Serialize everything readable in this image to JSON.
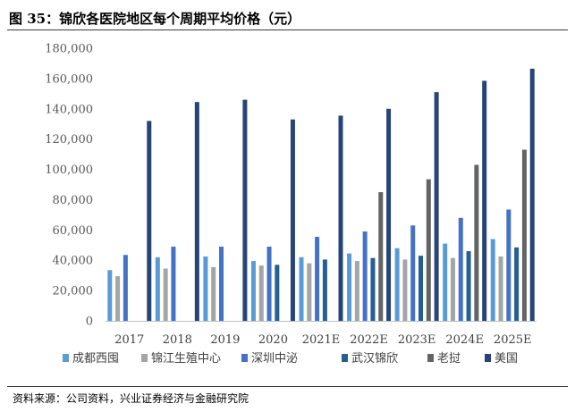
{
  "figure": {
    "title": "图  35：锦欣各医院地区每个周期平均价格（元）",
    "source": "资料来源：公司资料，兴业证券经济与金融研究院"
  },
  "chart_data": {
    "type": "bar",
    "title": "",
    "xlabel": "",
    "ylabel": "",
    "ylim": [
      0,
      180000
    ],
    "yticks": [
      "0",
      "20,000",
      "40,000",
      "60,000",
      "80,000",
      "100,000",
      "120,000",
      "140,000",
      "160,000",
      "180,000"
    ],
    "grid": false,
    "legend_position": "bottom",
    "categories": [
      "2017",
      "2018",
      "2019",
      "2020",
      "2021E",
      "2022E",
      "2023E",
      "2024E",
      "2025E"
    ],
    "series": [
      {
        "name": "成都西囤",
        "color": "#5b9bd5",
        "values": [
          33500,
          42000,
          42500,
          39500,
          42000,
          44500,
          48000,
          51000,
          54000
        ]
      },
      {
        "name": "锦江生殖中心",
        "color": "#a5a5a5",
        "values": [
          29500,
          34500,
          35500,
          36500,
          38000,
          39500,
          40500,
          41500,
          42500
        ]
      },
      {
        "name": "深圳中泌",
        "color": "#4472c4",
        "values": [
          43500,
          49000,
          49000,
          49000,
          55500,
          59000,
          63000,
          68000,
          73500
        ]
      },
      {
        "name": "武汉锦欣",
        "color": "#255e91",
        "values": [
          null,
          null,
          null,
          37000,
          40500,
          41500,
          43000,
          46000,
          48500
        ]
      },
      {
        "name": "老挝",
        "color": "#636363",
        "values": [
          null,
          null,
          null,
          null,
          null,
          85000,
          93500,
          103000,
          113000
        ]
      },
      {
        "name": "美国",
        "color": "#264478",
        "values": [
          132000,
          144500,
          146000,
          133000,
          135500,
          140000,
          151000,
          158500,
          166500
        ]
      }
    ]
  }
}
